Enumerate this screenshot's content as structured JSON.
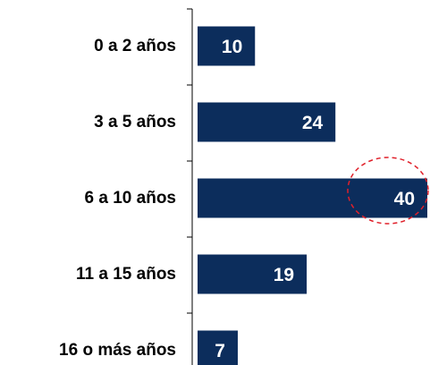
{
  "chart_data": {
    "type": "bar",
    "orientation": "horizontal",
    "categories": [
      "0 a 2 años",
      "3 a 5 años",
      "6 a 10 años",
      "11 a 15 años",
      "16 o más años"
    ],
    "values": [
      10,
      24,
      40,
      19,
      7
    ],
    "color": "#0c2d5c"
  }
}
